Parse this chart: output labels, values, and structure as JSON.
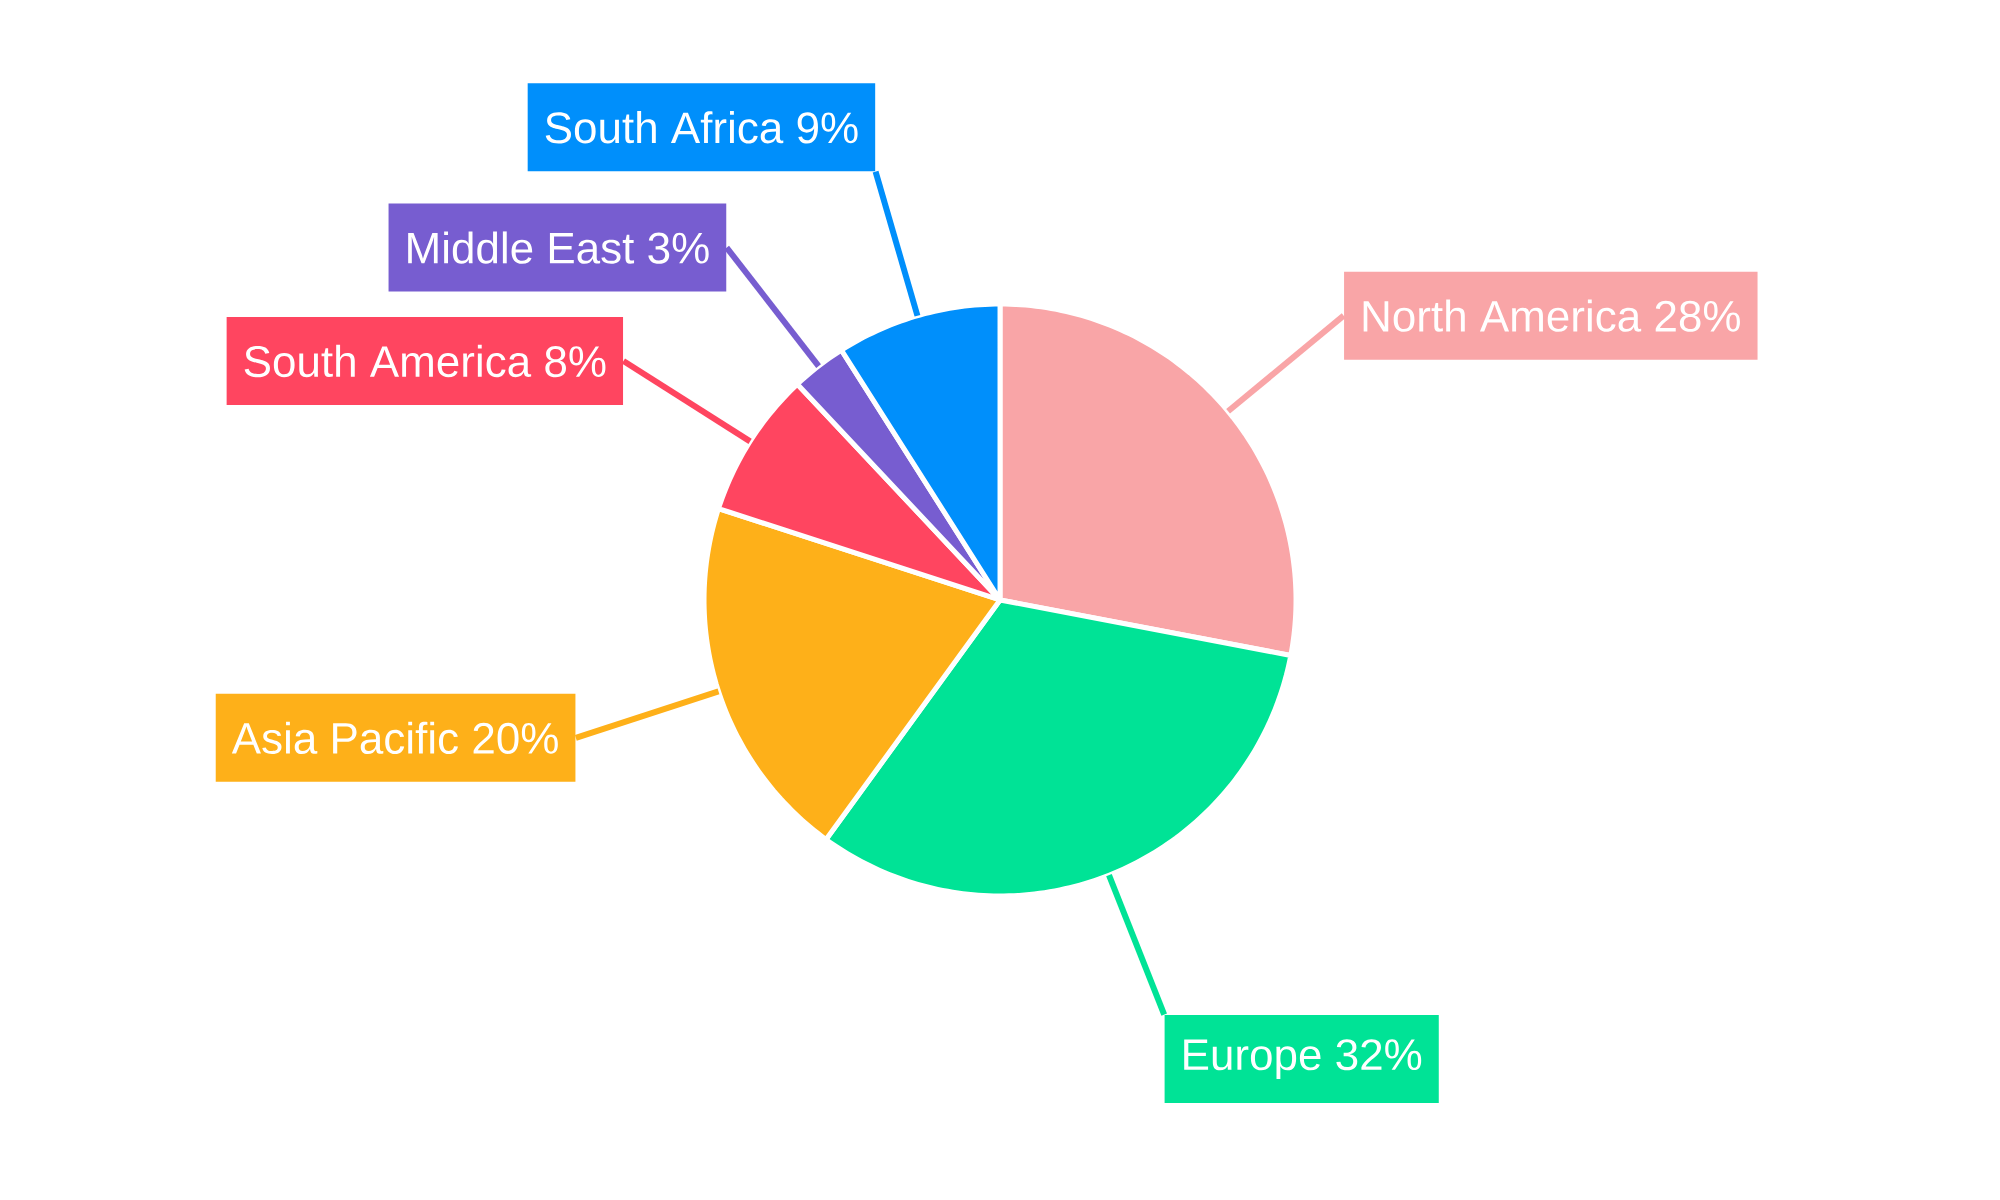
{
  "chart_data": {
    "type": "pie",
    "categories": [
      "North America",
      "Europe",
      "Asia Pacific",
      "South America",
      "Middle East",
      "South Africa"
    ],
    "values": [
      28,
      32,
      20,
      8,
      3,
      9
    ],
    "value_labels": [
      "28%",
      "32%",
      "20%",
      "8%",
      "3%",
      "9%"
    ],
    "colors": [
      "#f9a5a7",
      "#00e396",
      "#feb019",
      "#ff4560",
      "#775dd0",
      "#008ffb"
    ]
  }
}
